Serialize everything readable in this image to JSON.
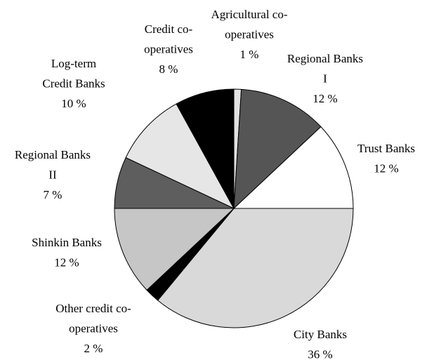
{
  "chart_data": {
    "type": "pie",
    "categories": [
      [
        "Agricultural co-",
        "operatives"
      ],
      [
        "Regional Banks",
        "I"
      ],
      [
        "Trust Banks"
      ],
      [
        "City Banks"
      ],
      [
        "Other credit co-",
        "operatives"
      ],
      [
        "Shinkin Banks"
      ],
      [
        "Regional Banks",
        "II"
      ],
      [
        "Log-term",
        "Credit Banks"
      ],
      [
        "Credit co-",
        "operatives"
      ]
    ],
    "values": [
      1,
      12,
      12,
      36,
      2,
      12,
      7,
      10,
      8
    ],
    "value_labels": [
      "1 %",
      "12 %",
      "12 %",
      "36 %",
      "2 %",
      "12 %",
      "7 %",
      "10 %",
      "8 %"
    ],
    "colors": [
      "#e2e2e2",
      "#555555",
      "#ffffff",
      "#d9d9d9",
      "#000000",
      "#c6c6c6",
      "#5e5e5e",
      "#e6e6e6",
      "#000000"
    ]
  }
}
